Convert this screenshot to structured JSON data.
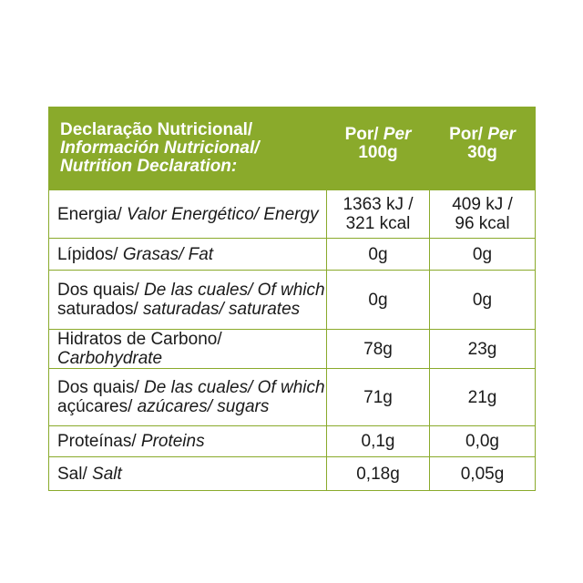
{
  "header": {
    "title_pt": "Declaração Nutricional/",
    "title_es": "Información Nutricional/",
    "title_en": "Nutrition Declaration:",
    "col1_por": "Por/ ",
    "col1_per": "Per",
    "col1_amount": "100g",
    "col2_por": "Por/ ",
    "col2_per": "Per",
    "col2_amount": "30g"
  },
  "rows": {
    "energy": {
      "label_plain": "Energia/ ",
      "label_italic": "Valor Energético/ Energy",
      "v100_l1": "1363 kJ /",
      "v100_l2": "321 kcal",
      "v30_l1": "409 kJ /",
      "v30_l2": "96 kcal"
    },
    "lipids": {
      "label_plain": "Lípidos/ ",
      "label_italic": "Grasas/ Fat",
      "v100": "0g",
      "v30": "0g"
    },
    "saturates": {
      "l1_plain": "Dos quais/ ",
      "l1_italic": "De las cuales/ Of which",
      "l2_plain": "saturados/ ",
      "l2_italic": "saturadas/ saturates",
      "v100": "0g",
      "v30": "0g"
    },
    "carbohydrate": {
      "label_plain": "Hidratos de Carbono/ ",
      "label_italic": "Carbohydrate",
      "v100": "78g",
      "v30": "23g"
    },
    "sugars": {
      "l1_plain": "Dos quais/ ",
      "l1_italic": "De las cuales/ Of which",
      "l2_plain": "açúcares/ ",
      "l2_italic": "azúcares/ sugars",
      "v100": "71g",
      "v30": "21g"
    },
    "protein": {
      "label_plain": "Proteínas/ ",
      "label_italic": "Proteins",
      "v100": "0,1g",
      "v30": "0,0g"
    },
    "salt": {
      "label_plain": "Sal/ ",
      "label_italic": "Salt",
      "v100": "0,18g",
      "v30": "0,05g"
    }
  },
  "colors": {
    "accent_green": "#8aaa2b",
    "header_text": "#ffffff",
    "body_text": "#1a1a1a"
  }
}
